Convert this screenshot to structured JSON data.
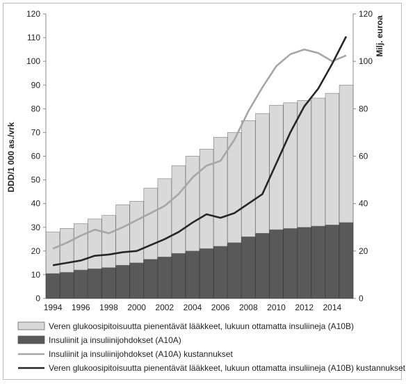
{
  "chart_data": {
    "type": "bar",
    "stacked": true,
    "x": [
      1994,
      1995,
      1996,
      1997,
      1998,
      1999,
      2000,
      2001,
      2002,
      2003,
      2004,
      2005,
      2006,
      2007,
      2008,
      2009,
      2010,
      2011,
      2012,
      2013,
      2014,
      2015
    ],
    "x_tick_labels": [
      "1994",
      "1996",
      "1998",
      "2000",
      "2002",
      "2004",
      "2006",
      "2008",
      "2010",
      "2012",
      "2014"
    ],
    "ylabel_left": "DDD/1 000 as./vrk",
    "ylabel_right": "Milj. euroa",
    "ylim_left": [
      0,
      120
    ],
    "ylim_right": [
      0,
      120
    ],
    "yticks_left": [
      "0",
      "10",
      "20",
      "30",
      "40",
      "50",
      "60",
      "70",
      "80",
      "90",
      "100",
      "110",
      "120"
    ],
    "yticks_right": [
      "0",
      "20",
      "40",
      "60",
      "80",
      "100",
      "120"
    ],
    "grid": false,
    "legend_position": "bottom",
    "series": [
      {
        "name": "Insuliinit ja insuliinijohdokset (A10A)",
        "kind": "bar",
        "axis": "left",
        "color": "#595959",
        "values": [
          10.5,
          11,
          12,
          12.5,
          13,
          14,
          15,
          16.5,
          17.5,
          19,
          20,
          21,
          22,
          23.5,
          26,
          27.5,
          29,
          29.5,
          30,
          30.5,
          31,
          32
        ]
      },
      {
        "name": "Veren glukoosipitoisuutta pienentävät lääkkeet, lukuun ottamatta insuliineja (A10B)",
        "kind": "bar",
        "axis": "left",
        "color": "#d9d9d9",
        "values": [
          17.5,
          18.5,
          19.5,
          21,
          22,
          25.5,
          26,
          30,
          33,
          37,
          40,
          42,
          46,
          46.5,
          49,
          50.5,
          52.5,
          53,
          53.5,
          54,
          55.5,
          58
        ]
      },
      {
        "name": "Insuliinit ja insuliinijohdokset (A10A) kustannukset",
        "kind": "line",
        "axis": "right",
        "color": "#a6a6a6",
        "values": [
          21,
          23.5,
          26.5,
          29,
          27.5,
          30,
          33,
          36,
          39,
          44,
          51,
          56,
          58,
          67,
          79,
          89,
          98,
          103,
          105,
          103.5,
          100,
          102.5
        ]
      },
      {
        "name": "Veren glukoosipitoisuutta pienentävät lääkkeet, lukuun ottamatta insuliineja (A10B) kustannukset",
        "kind": "line",
        "axis": "right",
        "color": "#262626",
        "values": [
          14,
          15,
          16,
          18,
          18.5,
          19.5,
          20,
          22.5,
          25,
          28,
          32,
          35.5,
          34,
          36,
          40,
          44,
          57,
          70,
          81,
          88.5,
          99,
          110.5
        ]
      }
    ],
    "legend": [
      {
        "label": "Veren glukoosipitoisuutta pienentävät lääkkeet, lukuun ottamatta insuliineja (A10B)",
        "kind": "bar",
        "color": "#d9d9d9"
      },
      {
        "label": "Insuliinit ja insuliinijohdokset (A10A)",
        "kind": "bar",
        "color": "#595959"
      },
      {
        "label": "Insuliinit ja insuliinijohdokset (A10A) kustannukset",
        "kind": "line",
        "color": "#a6a6a6"
      },
      {
        "label": "Veren glukoosipitoisuutta pienentävät lääkkeet, lukuun ottamatta insuliineja (A10B) kustannukset",
        "kind": "line",
        "color": "#262626"
      }
    ]
  }
}
